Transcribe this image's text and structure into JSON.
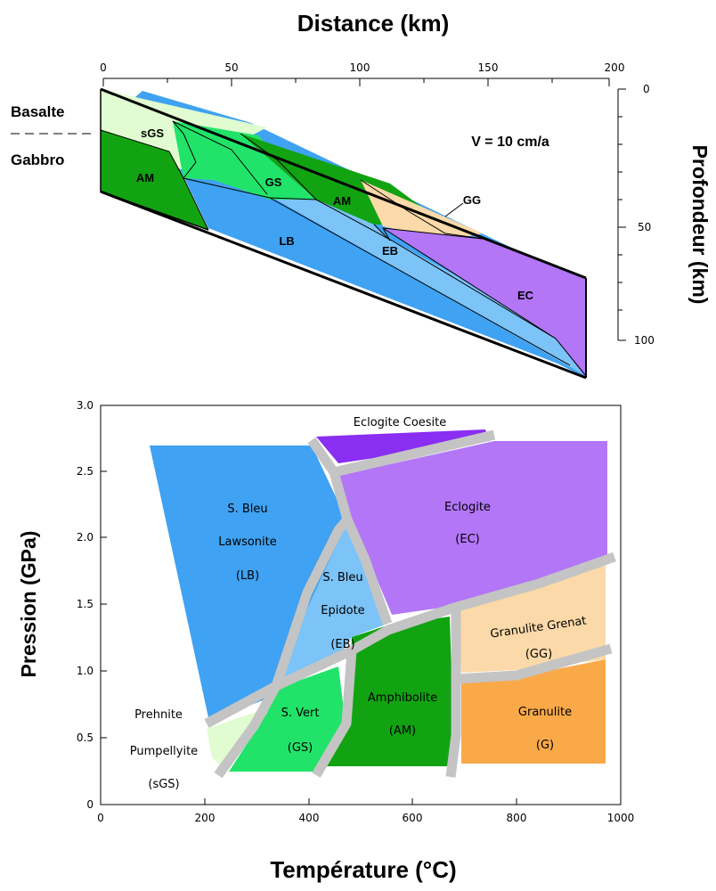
{
  "cross_section": {
    "title": "Distance (km)",
    "right_axis_label": "Profondeur (km)",
    "x_ticks": [
      "0",
      "50",
      "100",
      "150",
      "200"
    ],
    "depth_ticks": [
      "0",
      "50",
      "100"
    ],
    "side_labels": {
      "top": "Basalte",
      "bottom": "Gabbro"
    },
    "velocity": "V = 10 cm/a",
    "zones": {
      "sGS": "sGS",
      "AM_left": "AM",
      "GS": "GS",
      "AM_mid": "AM",
      "GG": "GG",
      "LB": "LB",
      "EB": "EB",
      "EC": "EC"
    }
  },
  "phase_diagram": {
    "xlabel": "Température (°C)",
    "ylabel": "Pression (GPa)",
    "x_ticks": [
      "0",
      "200",
      "400",
      "600",
      "800",
      "1000"
    ],
    "y_ticks": [
      "0",
      "0.5",
      "1.0",
      "1.5",
      "2.0",
      "2.5",
      "3.0"
    ],
    "facies": {
      "coesite": "Eclogite Coesite",
      "ec_name": "Eclogite",
      "ec_abbr": "(EC)",
      "lb_l1": "S. Bleu",
      "lb_l2": "Lawsonite",
      "lb_abbr": "(LB)",
      "eb_l1": "S. Bleu",
      "eb_l2": "Epidote",
      "eb_abbr": "(EB)",
      "gg_name": "Granulite Grenat",
      "gg_abbr": "(GG)",
      "am_name": "Amphibolite",
      "am_abbr": "(AM)",
      "gs_name": "S. Vert",
      "gs_abbr": "(GS)",
      "g_name": "Granulite",
      "g_abbr": "(G)",
      "sgs_l1": "Prehnite",
      "sgs_l2": "Pumpellyite",
      "sgs_abbr": "(sGS)"
    },
    "colors": {
      "blueschist_lawsonite": "#3fa2f2",
      "blueschist_epidote": "#7cc3f7",
      "eclogite": "#b276f7",
      "eclogite_coesite": "#8a2ef2",
      "granulite_garnet": "#fbd9a8",
      "granulite": "#f9a948",
      "amphibolite": "#12a312",
      "greenschist": "#22e36a",
      "subgreenschist": "#e0fcd0",
      "boundary": "#c4c4c4"
    }
  }
}
